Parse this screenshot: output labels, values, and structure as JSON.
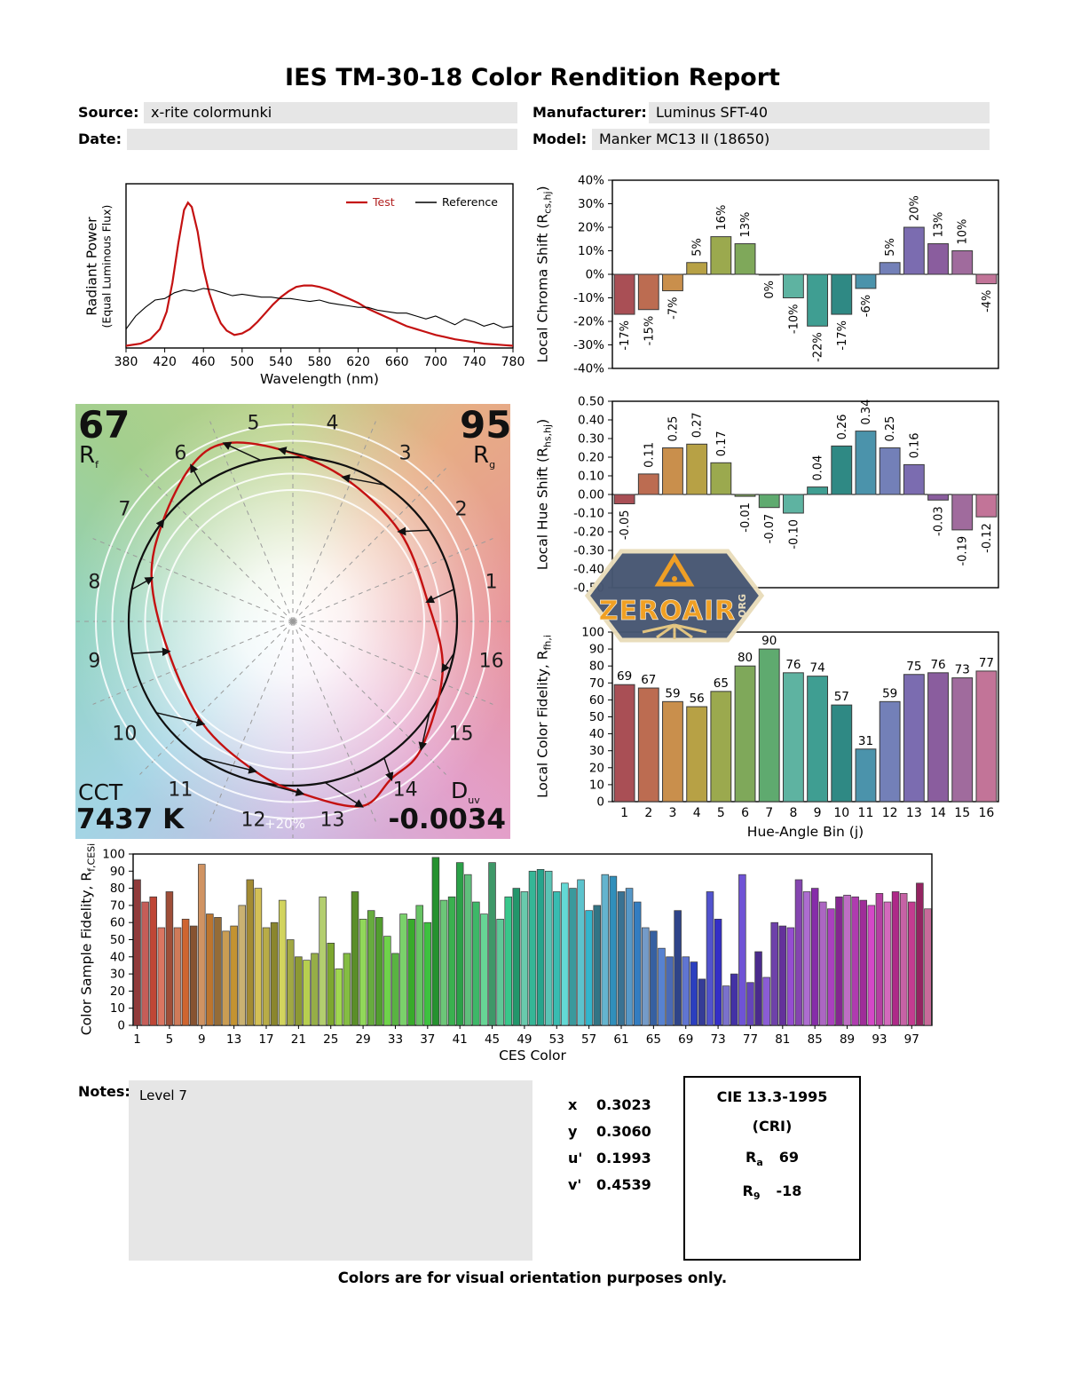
{
  "page": {
    "title": "IES TM-30-18 Color Rendition Report",
    "footer": "Colors are for visual orientation purposes only."
  },
  "header": {
    "source_label": "Source:",
    "source_value": "x-rite colormunki",
    "manufacturer_label": "Manufacturer:",
    "manufacturer_value": "Luminus SFT-40",
    "date_label": "Date:",
    "date_value": "",
    "model_label": "Model:",
    "model_value": "Manker MC13 II (18650)"
  },
  "legend": {
    "test": "Test",
    "reference": "Reference"
  },
  "axis_labels": {
    "spd_y1": "Radiant Power",
    "spd_y2": "(Equal Luminous Flux)",
    "spd_x": "Wavelength (nm)",
    "chroma_prefix": "Local Chroma Shift (R",
    "chroma_sub": "cs,hj",
    "chroma_suffix": ")",
    "hue_prefix": "Local Hue Shift (R",
    "hue_sub": "hs,hj",
    "hue_suffix": ")",
    "fid_prefix": "Local Color Fidelity, R",
    "fid_sub": "fh,i",
    "fid_x": "Hue-Angle Bin (j)",
    "ces_prefix": "Color Sample Fidelity, R",
    "ces_sub": "f,CESi",
    "ces_x": "CES Color"
  },
  "cvg": {
    "rf_value": "67",
    "rf_sym": "R",
    "rf_sub": "f",
    "rg_value": "95",
    "rg_sym": "R",
    "rg_sub": "g",
    "cct_label": "CCT",
    "cct_value": "7437 K",
    "duv_sym": "D",
    "duv_sub": "uv",
    "duv_value": "-0.0034",
    "plus20": "+20%"
  },
  "watermark": {
    "name": "ZEROAIR",
    "suffix": ".ORG"
  },
  "notes": {
    "label": "Notes:",
    "value": "Level 7"
  },
  "chromaticity": {
    "rows": [
      {
        "label": "x",
        "value": "0.3023"
      },
      {
        "label": "y",
        "value": "0.3060"
      },
      {
        "label": "u'",
        "value": "0.1993"
      },
      {
        "label": "v'",
        "value": "0.4539"
      }
    ]
  },
  "cri_box": {
    "title": "CIE 13.3-1995",
    "subtitle": "(CRI)",
    "rows": [
      {
        "sym": "R",
        "sub": "a",
        "value": "69"
      },
      {
        "sym": "R",
        "sub": "9",
        "value": "-18"
      }
    ]
  },
  "hue_bin_colors": [
    "#a94f55",
    "#bc6c51",
    "#c98f4c",
    "#b7a145",
    "#9ba94e",
    "#7fa85a",
    "#5faa6f",
    "#5eb3a1",
    "#3f9e92",
    "#2f8984",
    "#4b93ab",
    "#7380b8",
    "#7b6cb0",
    "#8a5d9e",
    "#a06b9d",
    "#c27498"
  ],
  "chart_data": [
    {
      "id": "spd",
      "type": "line",
      "title": "",
      "xlabel": "Wavelength (nm)",
      "ylabel": "Radiant Power (Equal Luminous Flux)",
      "xlim": [
        380,
        780
      ],
      "ylim": [
        0,
        1.13
      ],
      "xticks": [
        380,
        420,
        460,
        500,
        540,
        580,
        620,
        660,
        700,
        740,
        780
      ],
      "legend_position": "top-right",
      "series": [
        {
          "name": "Test",
          "color": "#c41111",
          "width": 2.2,
          "x": [
            380,
            395,
            405,
            415,
            422,
            428,
            434,
            440,
            444,
            448,
            454,
            460,
            466,
            472,
            478,
            484,
            492,
            500,
            508,
            516,
            524,
            532,
            540,
            548,
            556,
            564,
            572,
            580,
            590,
            600,
            610,
            620,
            630,
            640,
            650,
            660,
            670,
            680,
            690,
            700,
            710,
            720,
            730,
            740,
            750,
            760,
            770,
            780
          ],
          "y": [
            0.015,
            0.03,
            0.06,
            0.13,
            0.25,
            0.45,
            0.72,
            0.95,
            1.0,
            0.97,
            0.8,
            0.55,
            0.38,
            0.26,
            0.17,
            0.12,
            0.09,
            0.1,
            0.13,
            0.18,
            0.24,
            0.3,
            0.35,
            0.39,
            0.42,
            0.43,
            0.43,
            0.42,
            0.4,
            0.37,
            0.34,
            0.31,
            0.27,
            0.24,
            0.21,
            0.18,
            0.15,
            0.13,
            0.11,
            0.09,
            0.075,
            0.06,
            0.05,
            0.04,
            0.03,
            0.025,
            0.02,
            0.015
          ]
        },
        {
          "name": "Reference",
          "color": "#000000",
          "width": 1.1,
          "x": [
            380,
            390,
            400,
            410,
            420,
            430,
            440,
            450,
            460,
            470,
            480,
            490,
            500,
            510,
            520,
            530,
            540,
            550,
            560,
            570,
            580,
            590,
            600,
            610,
            620,
            630,
            640,
            650,
            660,
            670,
            680,
            690,
            700,
            710,
            720,
            730,
            740,
            750,
            760,
            770,
            780
          ],
          "y": [
            0.13,
            0.22,
            0.28,
            0.33,
            0.34,
            0.38,
            0.4,
            0.39,
            0.41,
            0.4,
            0.38,
            0.36,
            0.37,
            0.36,
            0.35,
            0.35,
            0.34,
            0.34,
            0.33,
            0.32,
            0.33,
            0.31,
            0.3,
            0.29,
            0.28,
            0.28,
            0.26,
            0.25,
            0.24,
            0.24,
            0.22,
            0.2,
            0.22,
            0.19,
            0.16,
            0.2,
            0.18,
            0.15,
            0.17,
            0.14,
            0.15
          ]
        }
      ]
    },
    {
      "id": "chroma_shift",
      "type": "bar",
      "ylabel": "Local Chroma Shift (Rcs,hj)",
      "categories": [
        1,
        2,
        3,
        4,
        5,
        6,
        7,
        8,
        9,
        10,
        11,
        12,
        13,
        14,
        15,
        16
      ],
      "values": [
        -17,
        -15,
        -7,
        5,
        16,
        13,
        0,
        -10,
        -22,
        -17,
        -6,
        5,
        20,
        13,
        10,
        -4
      ],
      "labels": [
        "-17%",
        "-15%",
        "-7%",
        "5%",
        "16%",
        "13%",
        "0%",
        "-10%",
        "-22%",
        "-17%",
        "-6%",
        "5%",
        "20%",
        "13%",
        "10%",
        "-4%"
      ],
      "ylim": [
        -40,
        40
      ],
      "yticks": [
        {
          "v": 40,
          "l": "40%"
        },
        {
          "v": 30,
          "l": "30%"
        },
        {
          "v": 20,
          "l": "20%"
        },
        {
          "v": 10,
          "l": "10%"
        },
        {
          "v": 0,
          "l": "0%"
        },
        {
          "v": -10,
          "l": "-10%"
        },
        {
          "v": -20,
          "l": "-20%"
        },
        {
          "v": -30,
          "l": "-30%"
        },
        {
          "v": -40,
          "l": "-40%"
        }
      ]
    },
    {
      "id": "hue_shift",
      "type": "bar",
      "ylabel": "Local Hue Shift (Rhs,hj)",
      "categories": [
        1,
        2,
        3,
        4,
        5,
        6,
        7,
        8,
        9,
        10,
        11,
        12,
        13,
        14,
        15,
        16
      ],
      "values": [
        -0.05,
        0.11,
        0.25,
        0.27,
        0.17,
        -0.01,
        -0.07,
        -0.1,
        0.04,
        0.26,
        0.34,
        0.25,
        0.16,
        -0.03,
        -0.19,
        -0.12
      ],
      "labels": [
        "-0.05",
        "0.11",
        "0.25",
        "0.27",
        "0.17",
        "-0.01",
        "-0.07",
        "-0.10",
        "0.04",
        "0.26",
        "0.34",
        "0.25",
        "0.16",
        "-0.03",
        "-0.19",
        "-0.12"
      ],
      "ylim": [
        -0.5,
        0.5
      ],
      "yticks": [
        {
          "v": 0.5,
          "l": "0.50"
        },
        {
          "v": 0.4,
          "l": "0.40"
        },
        {
          "v": 0.3,
          "l": "0.30"
        },
        {
          "v": 0.2,
          "l": "0.20"
        },
        {
          "v": 0.1,
          "l": "0.10"
        },
        {
          "v": 0,
          "l": "0.00"
        },
        {
          "v": -0.1,
          "l": "-0.10"
        },
        {
          "v": -0.2,
          "l": "-0.20"
        },
        {
          "v": -0.3,
          "l": "-0.30"
        },
        {
          "v": -0.4,
          "l": "-0.40"
        },
        {
          "v": -0.5,
          "l": "-0.50"
        }
      ]
    },
    {
      "id": "local_fidelity",
      "type": "bar",
      "ylabel": "Local Color Fidelity, Rfh,i",
      "xlabel": "Hue-Angle Bin (j)",
      "categories": [
        1,
        2,
        3,
        4,
        5,
        6,
        7,
        8,
        9,
        10,
        11,
        12,
        13,
        14,
        15,
        16
      ],
      "values": [
        69,
        67,
        59,
        56,
        65,
        80,
        90,
        76,
        74,
        57,
        31,
        59,
        75,
        76,
        73,
        77
      ],
      "ylim": [
        0,
        100
      ],
      "yticks": [
        {
          "v": 100,
          "l": "100"
        },
        {
          "v": 90,
          "l": "90"
        },
        {
          "v": 80,
          "l": "80"
        },
        {
          "v": 70,
          "l": "70"
        },
        {
          "v": 60,
          "l": "60"
        },
        {
          "v": 50,
          "l": "50"
        },
        {
          "v": 40,
          "l": "40"
        },
        {
          "v": 30,
          "l": "30"
        },
        {
          "v": 20,
          "l": "20"
        },
        {
          "v": 10,
          "l": "10"
        },
        {
          "v": 0,
          "l": "0"
        }
      ]
    },
    {
      "id": "cvg",
      "type": "color-vector-graphic",
      "rf": 67,
      "rg": 95,
      "cct": "7437 K",
      "duv": -0.0034,
      "bins": [
        1,
        2,
        3,
        4,
        5,
        6,
        7,
        8,
        9,
        10,
        11,
        12,
        13,
        14,
        15,
        16
      ]
    },
    {
      "id": "ces_fidelity",
      "type": "bar",
      "ylabel": "Color Sample Fidelity, Rf,CESi",
      "xlabel": "CES Color",
      "ylim": [
        0,
        100
      ],
      "xticks": [
        1,
        5,
        9,
        13,
        17,
        21,
        25,
        29,
        33,
        37,
        41,
        45,
        49,
        53,
        57,
        61,
        65,
        69,
        73,
        77,
        81,
        85,
        89,
        93,
        97
      ],
      "yticks": [
        {
          "v": 100,
          "l": "100"
        },
        {
          "v": 90,
          "l": "90"
        },
        {
          "v": 80,
          "l": "80"
        },
        {
          "v": 70,
          "l": "70"
        },
        {
          "v": 60,
          "l": "60"
        },
        {
          "v": 50,
          "l": "50"
        },
        {
          "v": 40,
          "l": "40"
        },
        {
          "v": 30,
          "l": "30"
        },
        {
          "v": 20,
          "l": "20"
        },
        {
          "v": 10,
          "l": "10"
        },
        {
          "v": 0,
          "l": "0"
        }
      ],
      "values": [
        85,
        72,
        75,
        57,
        78,
        57,
        62,
        58,
        94,
        65,
        63,
        55,
        58,
        70,
        85,
        80,
        57,
        60,
        73,
        50,
        40,
        38,
        42,
        75,
        48,
        33,
        42,
        78,
        62,
        67,
        63,
        52,
        42,
        65,
        62,
        70,
        60,
        98,
        73,
        75,
        95,
        88,
        72,
        65,
        95,
        62,
        75,
        80,
        78,
        90,
        91,
        90,
        78,
        83,
        80,
        85,
        67,
        70,
        88,
        87,
        78,
        80,
        72,
        57,
        55,
        45,
        40,
        67,
        40,
        37,
        27,
        78,
        62,
        23,
        30,
        88,
        25,
        43,
        28,
        60,
        58,
        57,
        85,
        78,
        80,
        72,
        68,
        75,
        76,
        75,
        73,
        70,
        77,
        72,
        78,
        77,
        72,
        83,
        68
      ]
    }
  ]
}
